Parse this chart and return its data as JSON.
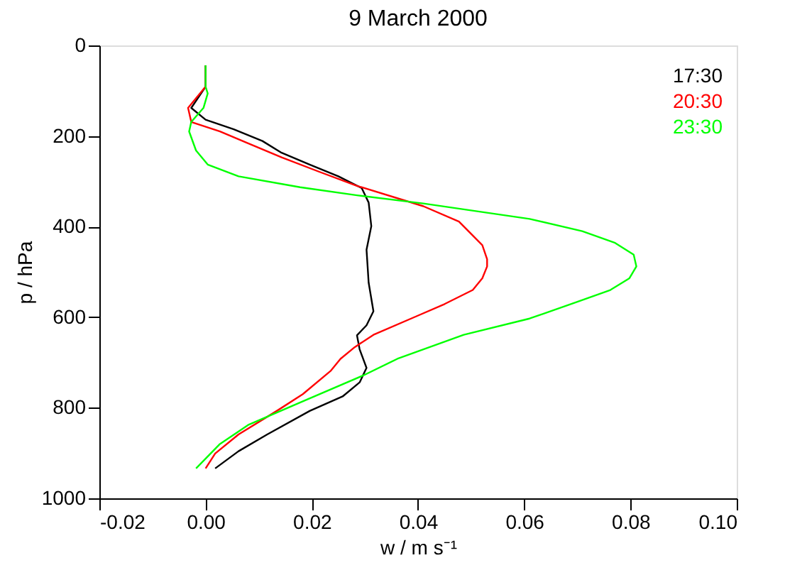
{
  "chart_data": {
    "type": "line",
    "title": "9 March 2000",
    "xlabel": "w / m s⁻¹",
    "ylabel": "p / hPa",
    "xlim": [
      -0.02,
      0.1
    ],
    "xticks": [
      {
        "value": -0.02,
        "label": "-0.02"
      },
      {
        "value": 0,
        "label": "0.00"
      },
      {
        "value": 0.02,
        "label": "0.02"
      },
      {
        "value": 0.04,
        "label": "0.04"
      },
      {
        "value": 0.06,
        "label": "0.06"
      },
      {
        "value": 0.08,
        "label": "0.08"
      },
      {
        "value": 0.1,
        "label": "0.10"
      }
    ],
    "ylim": [
      1000,
      0
    ],
    "yticks": [
      0,
      200,
      400,
      600,
      800,
      1000
    ],
    "grid": false,
    "legend": "top right",
    "marker": "none",
    "line_style": "solid",
    "series": [
      {
        "name": "17:30",
        "color": "#000000",
        "x": [
          0,
          0,
          -0.0027,
          0,
          0.0053,
          0.0107,
          0.0143,
          0.0196,
          0.025,
          0.0294,
          0.0307,
          0.0312,
          0.0303,
          0.0307,
          0.0316,
          0.0303,
          0.0285,
          0.029,
          0.0303,
          0.029,
          0.0258,
          0.0196,
          0.0116,
          0.0062,
          0.0018
        ],
        "values": [
          44,
          91,
          138,
          164,
          185,
          211,
          237,
          263,
          289,
          315,
          347,
          399,
          451,
          524,
          587,
          618,
          640,
          671,
          712,
          744,
          775,
          807,
          859,
          896,
          934
        ]
      },
      {
        "name": "20:30",
        "color": "#ff0000",
        "x": [
          0,
          0,
          -0.0033,
          -0.0027,
          0.0027,
          0.008,
          0.0143,
          0.0214,
          0.0285,
          0.041,
          0.0477,
          0.0521,
          0.053,
          0.053,
          0.0521,
          0.0503,
          0.045,
          0.0397,
          0.0316,
          0.0281,
          0.0254,
          0.0236,
          0.0183,
          0.0134,
          0.0062,
          0.0018,
          0
        ],
        "values": [
          44,
          91,
          138,
          169,
          190,
          216,
          247,
          279,
          310,
          355,
          389,
          441,
          472,
          488,
          514,
          540,
          571,
          598,
          639,
          666,
          692,
          718,
          770,
          807,
          859,
          901,
          934
        ]
      },
      {
        "name": "23:30",
        "color": "#00ff00",
        "x": [
          0,
          0,
          0.0004,
          -0.0004,
          -0.0027,
          -0.0031,
          -0.0018,
          0.0004,
          0.0062,
          0.0178,
          0.0285,
          0.041,
          0.061,
          0.0709,
          0.0771,
          0.0806,
          0.0811,
          0.0798,
          0.0762,
          0.07,
          0.061,
          0.0486,
          0.0361,
          0.0298,
          0.0183,
          0.008,
          0.0027,
          -0.0018
        ],
        "values": [
          44,
          91,
          106,
          138,
          169,
          190,
          232,
          263,
          289,
          313,
          331,
          349,
          383,
          410,
          436,
          462,
          488,
          514,
          540,
          566,
          603,
          639,
          692,
          728,
          786,
          838,
          880,
          934
        ]
      }
    ]
  }
}
